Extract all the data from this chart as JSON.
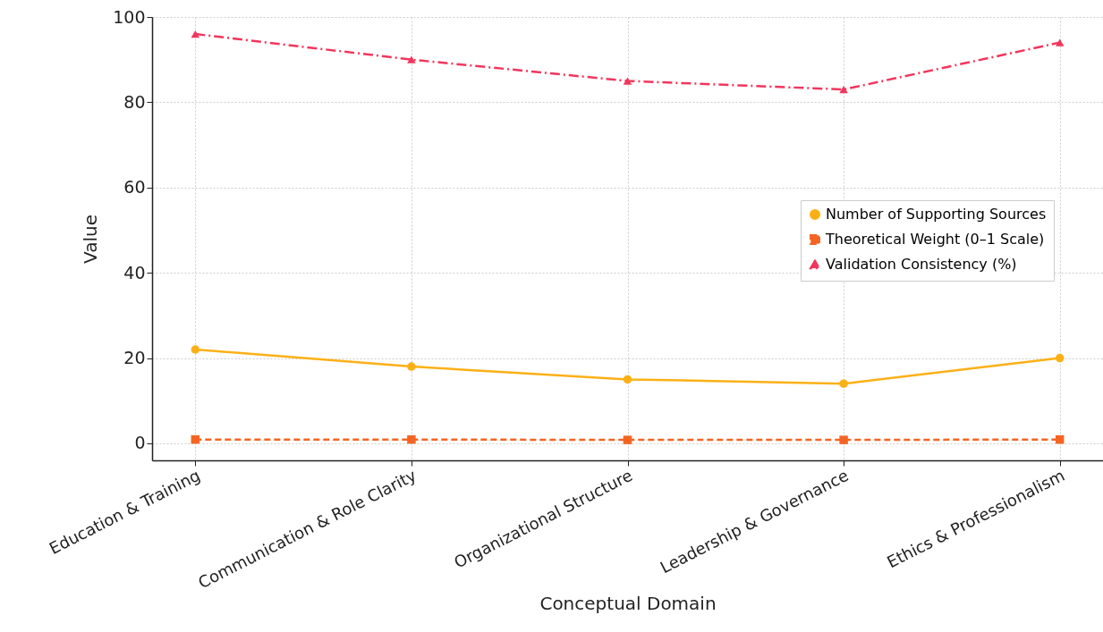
{
  "chart_data": {
    "type": "line",
    "xlabel": "Conceptual Domain",
    "ylabel": "Value",
    "categories": [
      "Education & Training",
      "Communication & Role Clarity",
      "Organizational Structure",
      "Leadership & Governance",
      "Ethics & Professionalism"
    ],
    "series": [
      {
        "name": "Number of Supporting Sources",
        "color": "#fcb016",
        "marker": "circle",
        "line_style": "solid",
        "values": [
          22,
          18,
          15,
          14,
          20
        ]
      },
      {
        "name": "Theoretical Weight (0–1 Scale)",
        "color": "#f46524",
        "marker": "square",
        "line_style": "dashed",
        "values": [
          0.9,
          0.9,
          0.8,
          0.8,
          0.9
        ]
      },
      {
        "name": "Validation Consistency (%)",
        "color": "#f2365c",
        "marker": "triangle",
        "line_style": "dashdot",
        "values": [
          96,
          90,
          85,
          83,
          94
        ]
      }
    ],
    "ylim": [
      -4,
      100
    ],
    "yticks": [
      0,
      20,
      40,
      60,
      80,
      100
    ],
    "grid": true,
    "legend": "right"
  }
}
